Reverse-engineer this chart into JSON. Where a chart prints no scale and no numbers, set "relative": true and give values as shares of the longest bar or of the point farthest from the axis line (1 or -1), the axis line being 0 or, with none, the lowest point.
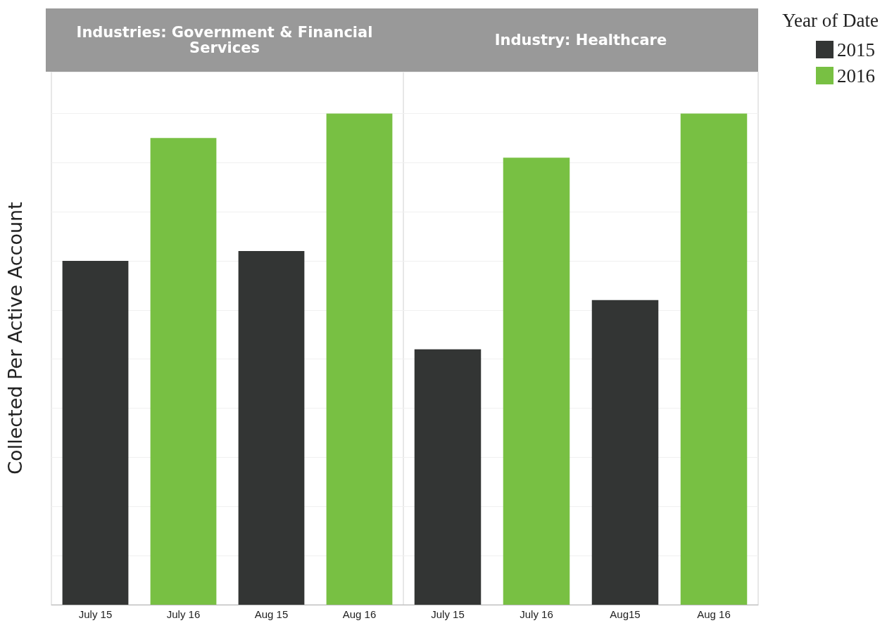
{
  "chart_data": [
    {
      "type": "bar",
      "title": "Industries: Government & Financial Services",
      "ylabel": "Collected Per Active Account",
      "categories": [
        "July 15",
        "July 16",
        "Aug 15",
        "Aug 16"
      ],
      "relative": true,
      "grid": "y",
      "legend": false,
      "series": [
        {
          "color": "#333534",
          "values": [
            0.7,
            null,
            0.72,
            null
          ]
        },
        {
          "color": "#78c043",
          "values": [
            null,
            0.95,
            null,
            1.0
          ]
        }
      ]
    },
    {
      "type": "bar",
      "title": "Industry: Healthcare",
      "legend_title": "Year of Date",
      "categories": [
        "July 15",
        "July 16",
        "Aug15",
        "Aug 16"
      ],
      "relative": true,
      "grid": "y",
      "legend": "top right",
      "series": [
        {
          "name": "2015",
          "color": "#333534",
          "values": [
            0.52,
            null,
            0.62,
            null
          ]
        },
        {
          "name": "2016",
          "color": "#78c043",
          "values": [
            null,
            0.91,
            null,
            1.0
          ]
        }
      ]
    }
  ]
}
